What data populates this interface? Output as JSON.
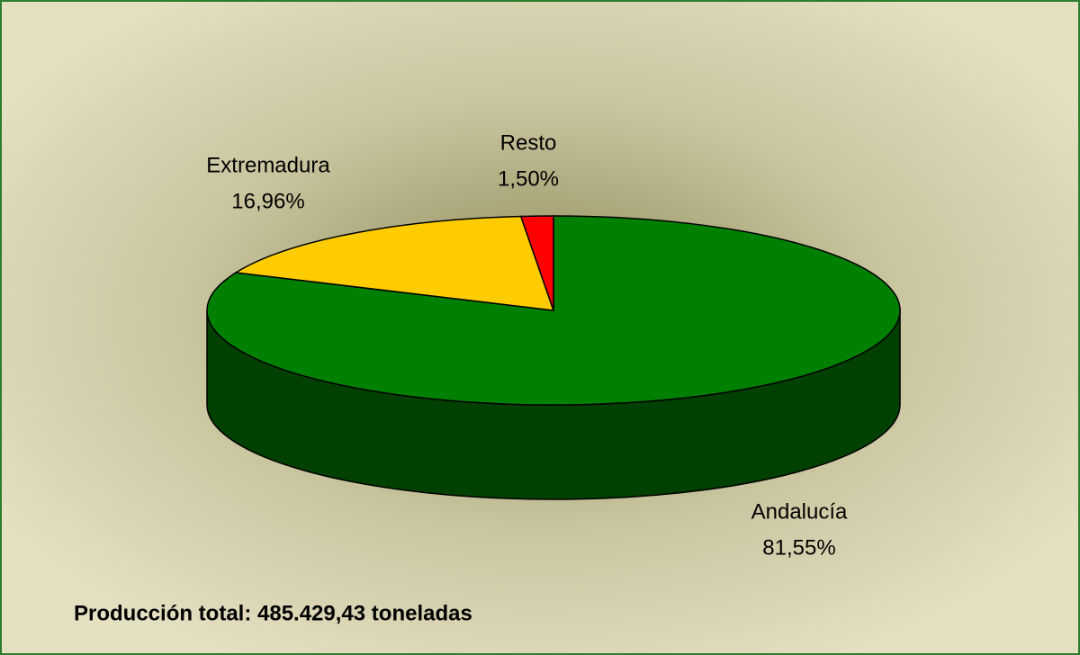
{
  "chart_data": {
    "type": "pie",
    "categories": [
      "Andalucía",
      "Extremadura",
      "Resto"
    ],
    "values": [
      81.55,
      16.96,
      1.5
    ],
    "value_labels": [
      "81,55%",
      "16,96%",
      "1,50%"
    ],
    "colors": [
      "#008000",
      "#ffcc00",
      "#ff0000"
    ],
    "annotation": "Producción total: 485.429,43 toneladas"
  }
}
